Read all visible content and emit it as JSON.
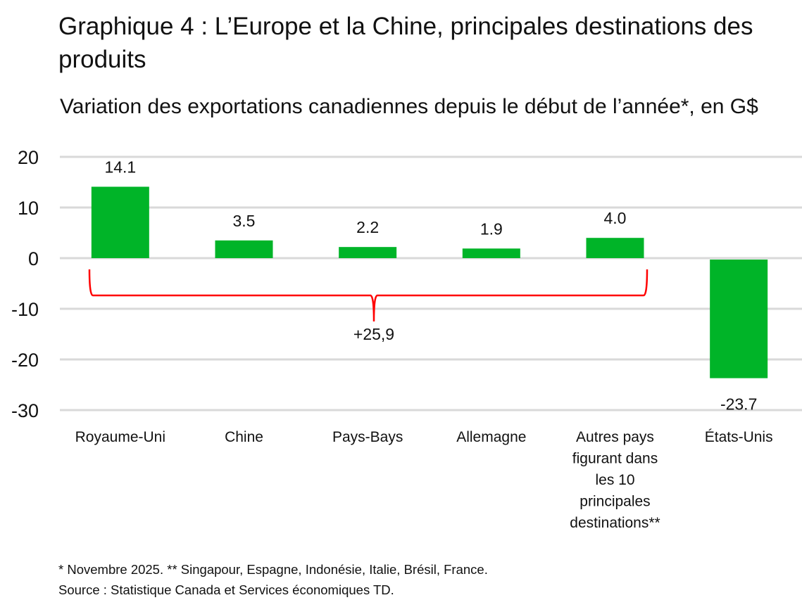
{
  "chart_data": {
    "type": "bar",
    "title": "Graphique 4 : L’Europe et la Chine, principales destinations des produits",
    "subtitle": "Variation des exportations canadiennes depuis le début de l’année*, en G$",
    "categories": [
      [
        "Royaume-Uni"
      ],
      [
        "Chine"
      ],
      [
        "Pays-Bays"
      ],
      [
        "Allemagne"
      ],
      [
        "Autres pays",
        "figurant dans",
        "les 10",
        "principales",
        "destinations**"
      ],
      [
        "États-Unis"
      ]
    ],
    "values": [
      14.1,
      3.5,
      2.2,
      1.9,
      4.0,
      -23.7
    ],
    "data_labels": [
      "14.1",
      "3.5",
      "2.2",
      "1.9",
      "4.0",
      "-23.7"
    ],
    "ylim": [
      -30,
      20
    ],
    "yticks": [
      20,
      10,
      0,
      -10,
      -20,
      -30
    ],
    "grid": true,
    "bar_color": "#00b428",
    "annotation": {
      "text": "+25,9",
      "spans_categories": [
        0,
        4
      ],
      "color": "#ff0000"
    },
    "xlabel": "",
    "ylabel": ""
  },
  "notes": {
    "footnote": "* Novembre 2025. ** Singapour, Espagne, Indonésie, Italie, Brésil, France.",
    "source": "Source : Statistique Canada et Services économiques TD."
  }
}
